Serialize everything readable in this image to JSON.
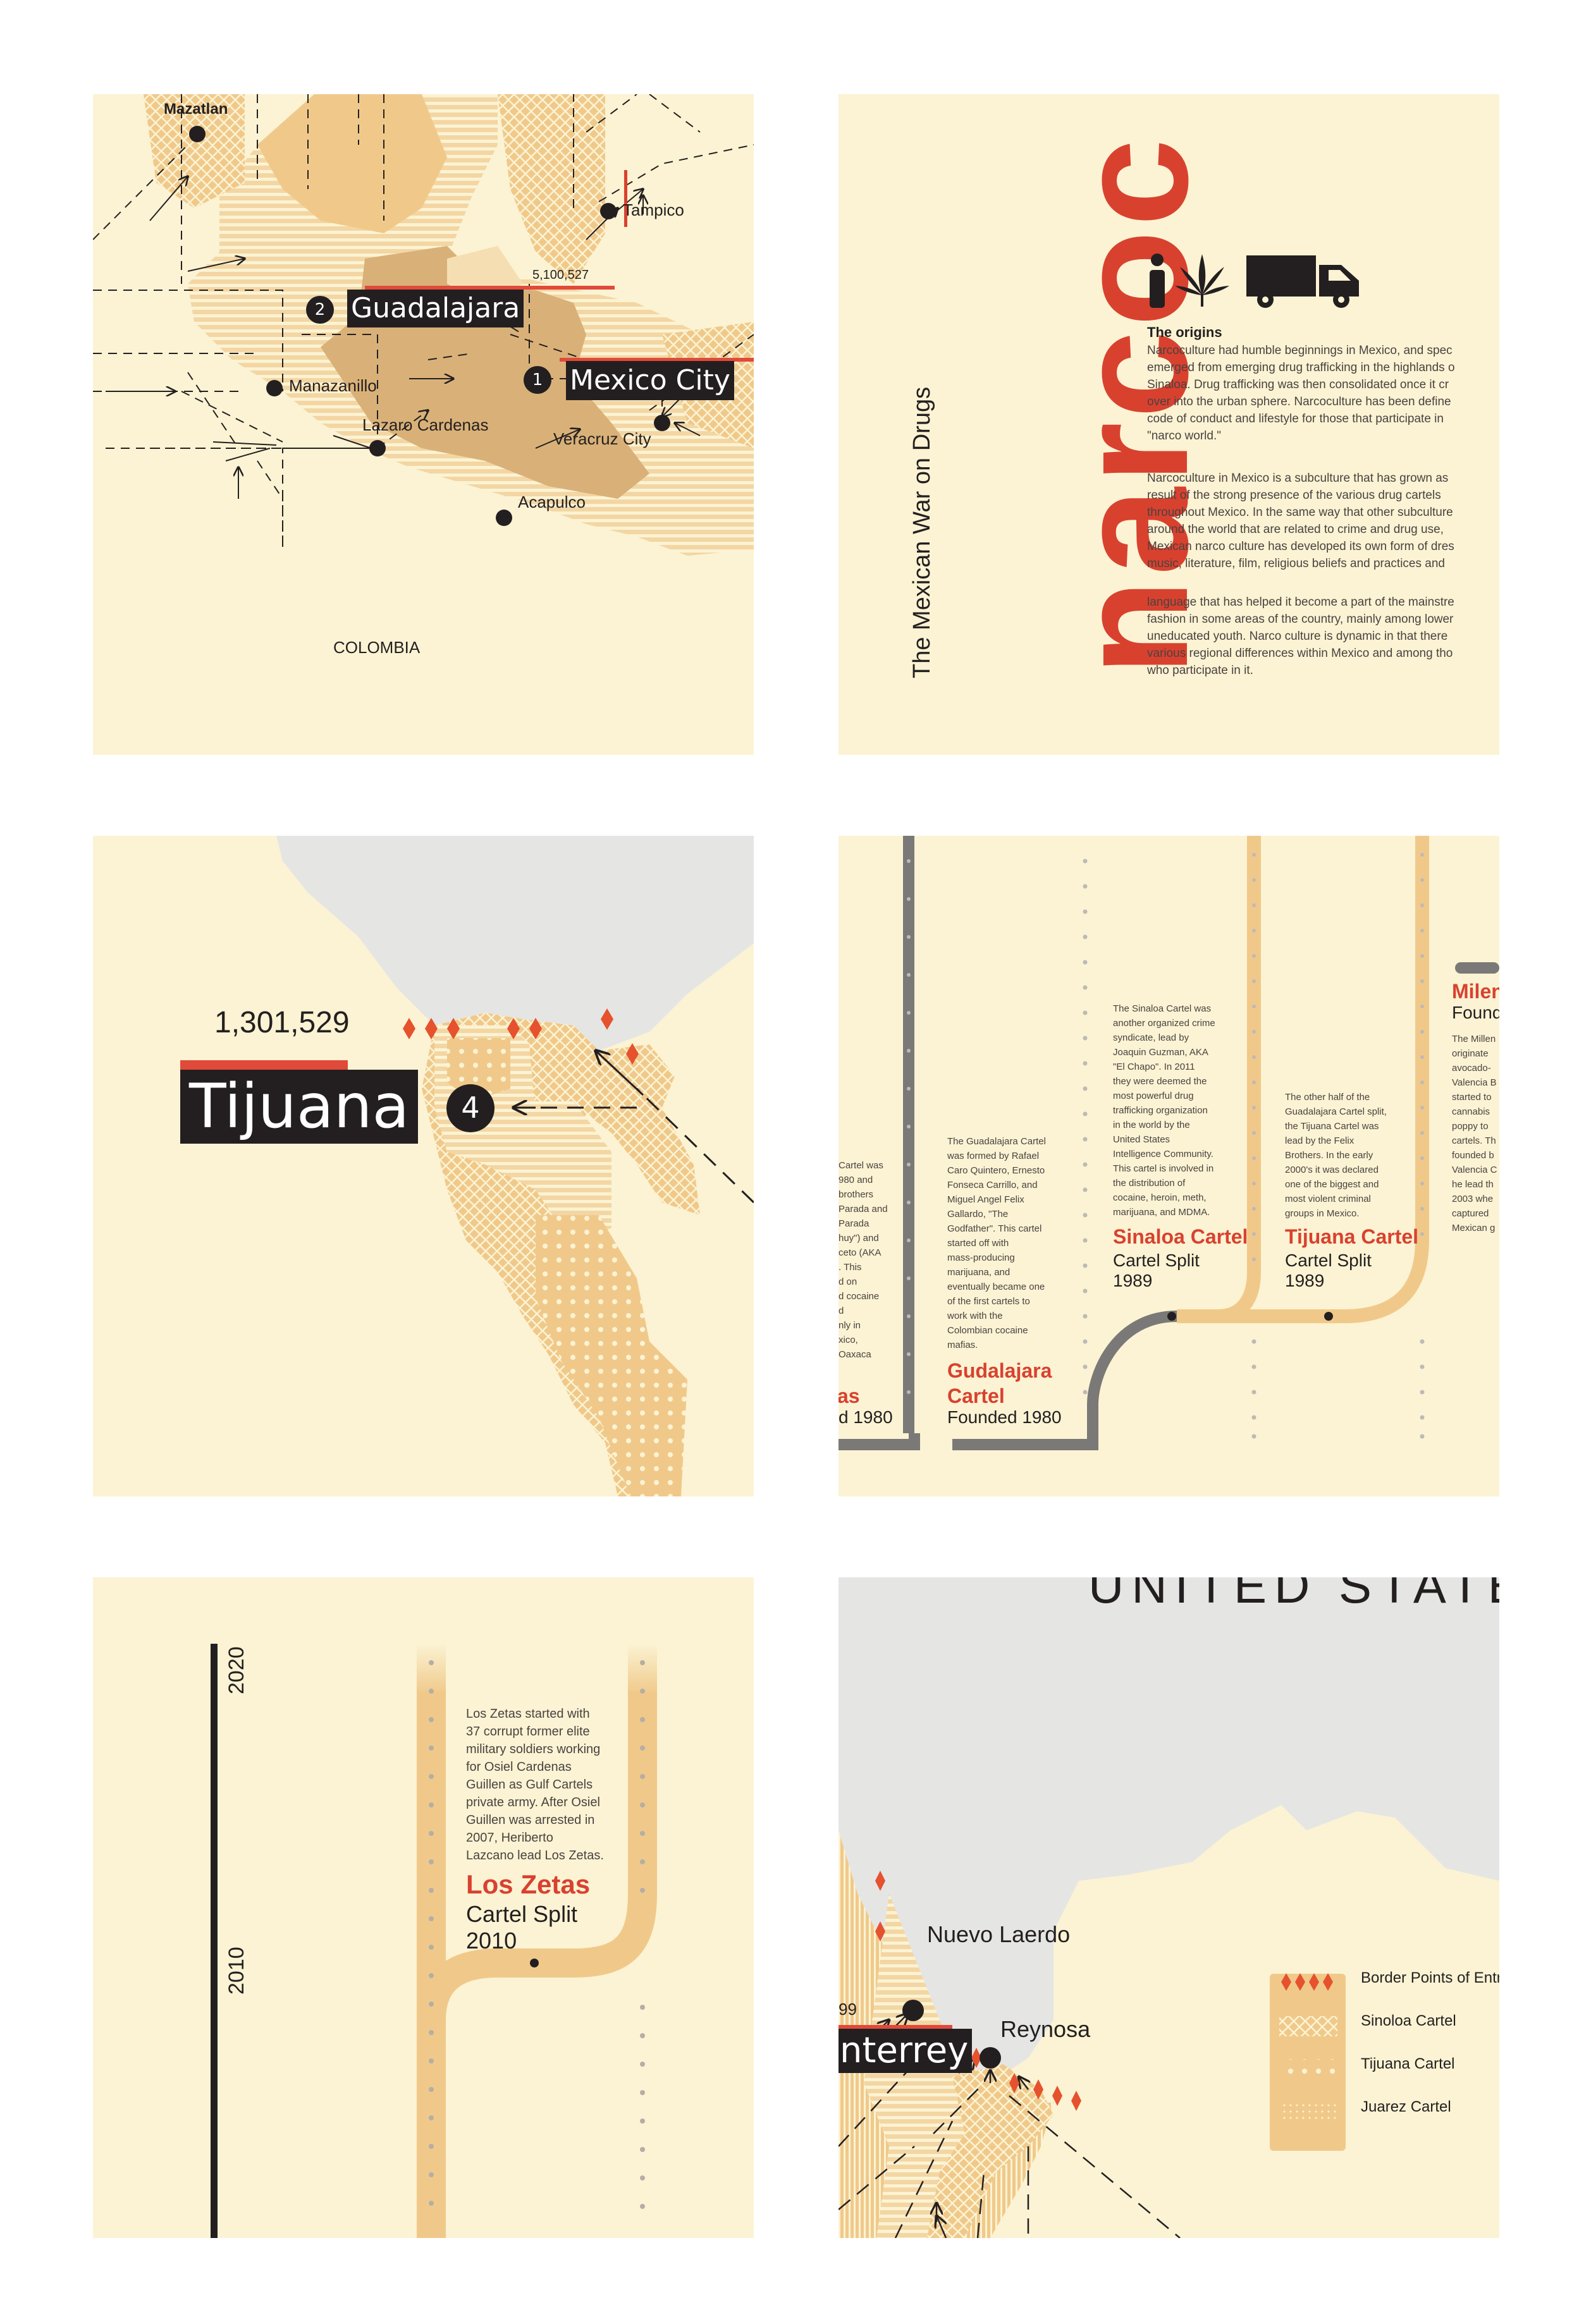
{
  "panel1": {
    "cities": {
      "mazatlan": "Mazatlan",
      "tampico": "Tampico",
      "manzanillo": "Manazanillo",
      "lazaro": "Lazaro Cardenas",
      "veracruz": "Veracruz City",
      "acapulco": "Acapulco",
      "colombia": "COLOMBIA"
    },
    "guadalajara": {
      "num": "2",
      "name": "Guadalajara",
      "population": "5,100,527"
    },
    "mexico_city": {
      "num": "1",
      "name": "Mexico City"
    }
  },
  "panel2": {
    "big_title": "narcoc",
    "subtitle": "The Mexican War on Drugs",
    "icons": [
      "person-icon",
      "cannabis-leaf-icon",
      "truck-icon"
    ],
    "heading": "The origins",
    "para1": [
      "Narcoculture had humble beginnings in Mexico, and spec",
      "emerged from emerging drug trafficking in the highlands o",
      "Sinaloa. Drug trafficking was then consolidated once it cr",
      "over into the urban sphere. Narcoculture has been define",
      "code of conduct and lifestyle for those that participate in",
      "\"narco world.\""
    ],
    "para2": [
      "Narcoculture in Mexico is a subculture that has grown as",
      "result of the strong presence of the various drug cartels",
      "throughout Mexico. In the same way that other subculture",
      "around the world that are related to crime and drug use,",
      "Mexican narco culture has developed its own form of dres",
      "music, literature, film, religious beliefs and practices and"
    ],
    "para3": [
      "language that has helped it become a part of the mainstre",
      "fashion in some areas of the country, mainly among lower",
      "uneducated youth. Narco culture is dynamic in that there",
      "various regional differences within Mexico and among tho",
      "who participate in it."
    ]
  },
  "panel3": {
    "population": "1,301,529",
    "city": "Tijuana",
    "num": "4"
  },
  "panel4": {
    "left_partial": [
      "Cartel was",
      "980 and",
      "brothers",
      "Parada and",
      "Parada",
      "huy\") and",
      "ceto (AKA",
      ". This",
      "d on",
      "d cocaine",
      "d",
      "nly in",
      "xico,",
      "Oaxaca"
    ],
    "left_name_partial": "as",
    "left_founded_partial": "d 1980",
    "guadalajara_text": [
      "The Guadalajara Cartel",
      "was formed by Rafael",
      "Caro Quintero, Ernesto",
      "Fonseca Carrillo, and",
      "Miguel Angel Felix",
      "Gallardo, \"The",
      "Godfather\". This cartel",
      "started off with",
      "mass-producing",
      "marijuana, and",
      "eventually became one",
      "of the first cartels to",
      "work with the",
      "Colombian cocaine",
      "mafias."
    ],
    "guadalajara_name": [
      "Gudalajara",
      "Cartel"
    ],
    "guadalajara_founded": "Founded 1980",
    "sinaloa_text": [
      "The Sinaloa Cartel was",
      "another organized crime",
      "syndicate, lead by",
      "Joaquin Guzman, AKA",
      "\"El Chapo\". In 2011",
      "they were deemed the",
      "most powerful drug",
      "trafficking organization",
      "in the world by the",
      "United States",
      "Intelligence Community.",
      "This cartel is involved in",
      "the distribution of",
      "cocaine, heroin, meth,",
      "marijuana, and MDMA."
    ],
    "sinaloa_name": "Sinaloa Cartel",
    "sinaloa_split": "Cartel Split",
    "sinaloa_year": "1989",
    "tijuana_text": [
      "The other half of the",
      "Guadalajara Cartel split,",
      "the Tijuana Cartel was",
      "lead by the Felix",
      "Brothers. In the early",
      "2000's it was declared",
      "one of the biggest and",
      "most violent criminal",
      "groups in Mexico."
    ],
    "tijuana_name": "Tijuana Cartel",
    "tijuana_split": "Cartel Split",
    "tijuana_year": "1989",
    "right_name_partial": "Mileni",
    "right_founded_partial": "Found",
    "right_partial": [
      "The Millen",
      "originate",
      "avocado-",
      "Valencia B",
      "started to",
      "cannabis",
      "poppy to",
      "cartels. Th",
      "founded b",
      "Valencia C",
      "he lead th",
      "2003 whe",
      "captured",
      "Mexican g"
    ]
  },
  "panel5": {
    "year_top": "2020",
    "year_bottom": "2010",
    "zetas_text": [
      "Los Zetas started with",
      "37 corrupt former elite",
      "military soldiers working",
      "for Osiel Cardenas",
      "Guillen as Gulf Cartels",
      "private army. After Osiel",
      "Guillen was arrested in",
      "2007, Heriberto",
      "Lazcano lead Los Zetas."
    ],
    "zetas_name": "Los Zetas",
    "zetas_split": "Cartel Split",
    "zetas_year": "2010"
  },
  "panel6": {
    "country": "UNITED STATES",
    "nuevo_laredo": "Nuevo Laerdo",
    "reynosa": "Reynosa",
    "monterrey_partial": "nterrey",
    "pop_partial": "99",
    "legend": [
      {
        "label": "Border Points of Entr",
        "icon": "red-diamond-icon"
      },
      {
        "label": "Sinoloa Cartel",
        "icon": "crosshatch-pattern-icon"
      },
      {
        "label": "Tijuana Cartel",
        "icon": "dots-pattern-icon"
      },
      {
        "label": "Juarez Cartel",
        "icon": "stripes-pattern-icon"
      }
    ]
  },
  "colors": {
    "background": "#fbf3d3",
    "accent_red": "#d9412f",
    "tan": "#f0c98a",
    "dark": "#231f20"
  }
}
